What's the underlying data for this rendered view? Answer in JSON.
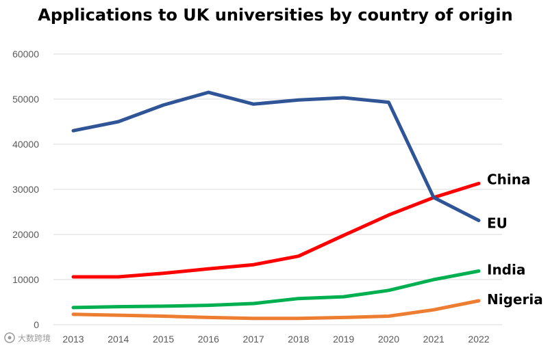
{
  "chart_data": {
    "type": "line",
    "title": "Applications to UK universities by country of origin",
    "xlabel": "",
    "ylabel": "",
    "x": [
      "2013",
      "2014",
      "2015",
      "2016",
      "2017",
      "2018",
      "2019",
      "2020",
      "2021",
      "2022"
    ],
    "ylim": [
      0,
      60000
    ],
    "yticks": [
      "0",
      "10000",
      "20000",
      "30000",
      "40000",
      "50000",
      "60000"
    ],
    "grid": true,
    "legend": "inline labels at line ends",
    "series": [
      {
        "name": "EU",
        "color": "#2f5597",
        "values": [
          43000,
          45000,
          48700,
          51500,
          48900,
          49800,
          50300,
          49300,
          28200,
          23100
        ]
      },
      {
        "name": "China",
        "color": "#ff0000",
        "values": [
          10600,
          10600,
          11400,
          12400,
          13300,
          15200,
          19800,
          24300,
          28200,
          31300
        ]
      },
      {
        "name": "India",
        "color": "#00b050",
        "values": [
          3800,
          4000,
          4100,
          4300,
          4700,
          5800,
          6200,
          7600,
          10000,
          11900
        ]
      },
      {
        "name": "Nigeria",
        "color": "#ed7d31",
        "values": [
          2300,
          2100,
          1900,
          1600,
          1400,
          1400,
          1600,
          1900,
          3300,
          5300
        ]
      }
    ]
  },
  "watermark": {
    "text": "大数跨境",
    "icon": "logo-icon"
  }
}
